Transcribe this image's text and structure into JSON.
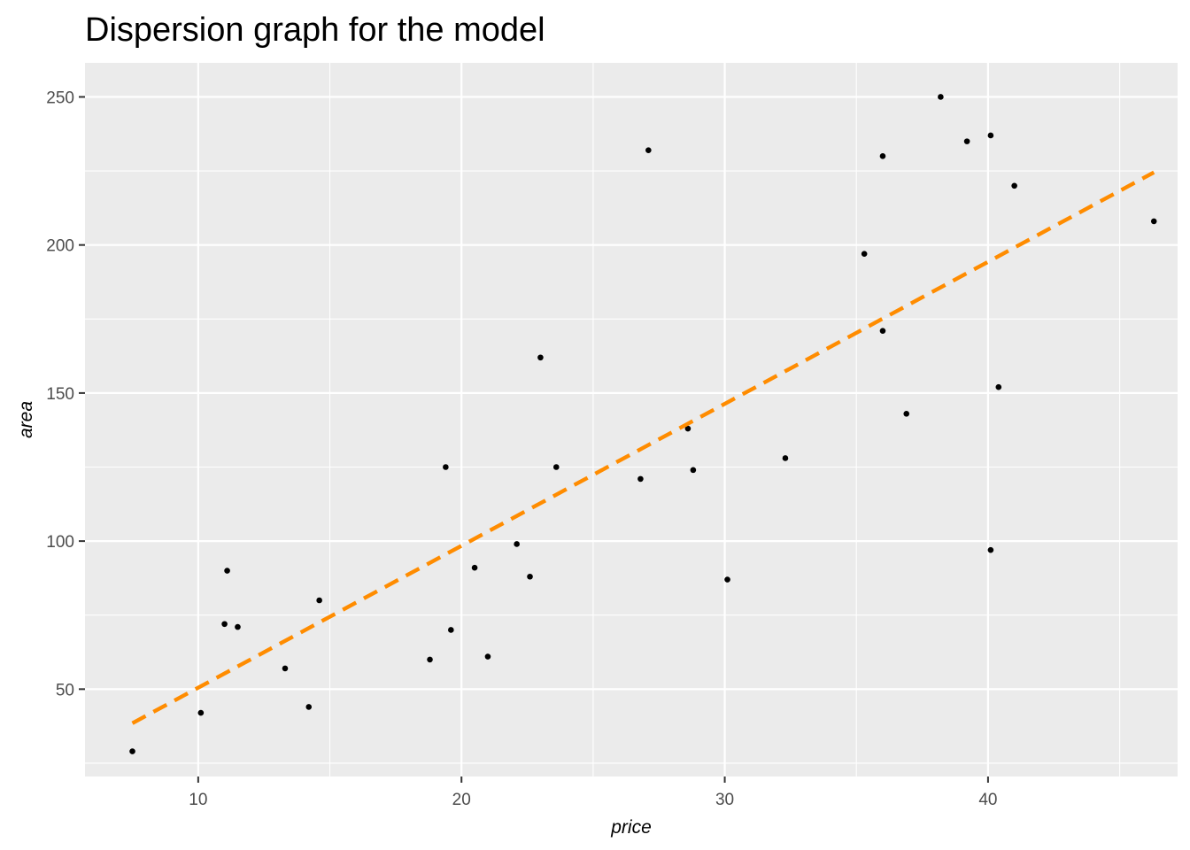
{
  "chart_data": {
    "type": "scatter",
    "title": "Dispersion graph for the model",
    "xlabel": "price",
    "ylabel": "area",
    "xlim": [
      5.7,
      47.2
    ],
    "ylim": [
      20.5,
      261.5
    ],
    "x_ticks": [
      10,
      20,
      30,
      40
    ],
    "x_minor_ticks": [
      15,
      25,
      35,
      45
    ],
    "y_ticks": [
      50,
      100,
      150,
      200,
      250
    ],
    "y_minor_ticks": [
      25,
      75,
      125,
      175,
      225
    ],
    "grid": true,
    "legend": "none",
    "colors": {
      "panel": "#ebebeb",
      "grid": "#ffffff",
      "points": "#000000",
      "trend_line": "#ff8c00"
    },
    "points": [
      {
        "x": 7.5,
        "y": 29
      },
      {
        "x": 10.1,
        "y": 42
      },
      {
        "x": 11.0,
        "y": 72
      },
      {
        "x": 11.1,
        "y": 90
      },
      {
        "x": 11.5,
        "y": 71
      },
      {
        "x": 13.3,
        "y": 57
      },
      {
        "x": 14.2,
        "y": 44
      },
      {
        "x": 14.6,
        "y": 80
      },
      {
        "x": 18.8,
        "y": 60
      },
      {
        "x": 19.4,
        "y": 125
      },
      {
        "x": 19.6,
        "y": 70
      },
      {
        "x": 20.5,
        "y": 91
      },
      {
        "x": 21.0,
        "y": 61
      },
      {
        "x": 22.1,
        "y": 99
      },
      {
        "x": 22.6,
        "y": 88
      },
      {
        "x": 23.0,
        "y": 162
      },
      {
        "x": 23.6,
        "y": 125
      },
      {
        "x": 26.8,
        "y": 121
      },
      {
        "x": 27.1,
        "y": 232
      },
      {
        "x": 28.6,
        "y": 138
      },
      {
        "x": 28.8,
        "y": 124
      },
      {
        "x": 30.1,
        "y": 87
      },
      {
        "x": 32.3,
        "y": 128
      },
      {
        "x": 35.3,
        "y": 197
      },
      {
        "x": 36.0,
        "y": 230
      },
      {
        "x": 36.0,
        "y": 171
      },
      {
        "x": 36.9,
        "y": 143
      },
      {
        "x": 38.2,
        "y": 250
      },
      {
        "x": 39.2,
        "y": 235
      },
      {
        "x": 40.1,
        "y": 237
      },
      {
        "x": 40.1,
        "y": 97
      },
      {
        "x": 40.4,
        "y": 152
      },
      {
        "x": 41.0,
        "y": 220
      },
      {
        "x": 46.3,
        "y": 208
      }
    ],
    "trend_line": {
      "style": "dashed",
      "x": [
        7.5,
        46.3
      ],
      "y": [
        38.5,
        224.5
      ]
    }
  }
}
